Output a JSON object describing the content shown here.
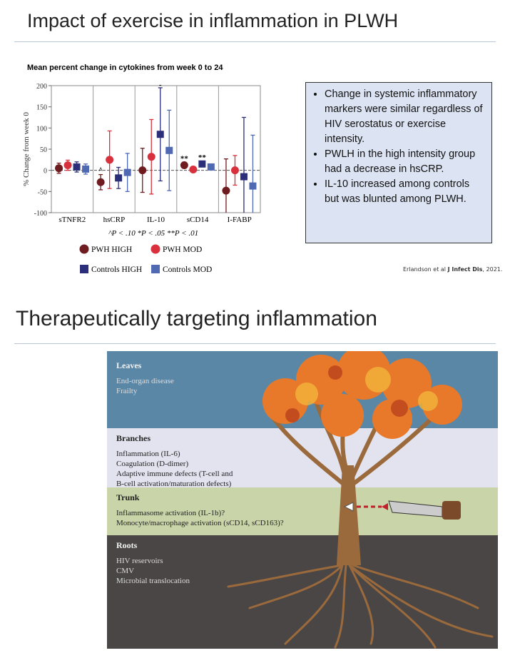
{
  "header": {
    "title": "Impact of exercise in inflammation in PLWH"
  },
  "chart_data": {
    "type": "dotplot",
    "title": "Mean percent change in cytokines from week 0 to 24",
    "y_label": "% Change from week 0",
    "categories": [
      "sTNFR2",
      "hsCRP",
      "IL-10",
      "sCD14",
      "I-FABP"
    ],
    "series": [
      {
        "name": "PWH HIGH",
        "color": "#6e1c1f",
        "marker": "circle",
        "values": [
          5,
          -28,
          0,
          12,
          -48
        ],
        "errors": [
          12,
          18,
          52,
          5,
          75
        ]
      },
      {
        "name": "PWH MOD",
        "color": "#d8303c",
        "marker": "circle",
        "values": [
          12,
          25,
          32,
          2,
          0
        ],
        "errors": [
          12,
          68,
          88,
          5,
          35
        ]
      },
      {
        "name": "Controls HIGH",
        "color": "#2b2e78",
        "marker": "square",
        "values": [
          8,
          -18,
          85,
          15,
          -15
        ],
        "errors": [
          12,
          25,
          110,
          5,
          140
        ]
      },
      {
        "name": "Controls MOD",
        "color": "#4f69b3",
        "marker": "square",
        "values": [
          3,
          -5,
          47,
          8,
          -37
        ],
        "errors": [
          12,
          45,
          95,
          4,
          120
        ]
      }
    ],
    "ylim": [
      -100,
      200
    ],
    "yticks": [
      -100,
      -50,
      0,
      50,
      100,
      150,
      200
    ],
    "annotations": [
      {
        "text": "^",
        "series": 0,
        "category": 1
      },
      {
        "text": "-",
        "series": 2,
        "category": 2
      },
      {
        "text": "**",
        "series": 0,
        "category": 3
      },
      {
        "text": "**",
        "series": 2,
        "category": 3
      }
    ],
    "footnote": "^P < .10   *P < .05   **P < .01"
  },
  "bullets": [
    "Change in systemic inflammatory markers were similar regardless of HIV serostatus or exercise intensity.",
    "PWLH in the high intensity group had a decrease in hsCRP.",
    "IL-10 increased among controls but was blunted among PLWH."
  ],
  "citation": {
    "authors": "Erlandson et al",
    "journal": "J Infect Dis",
    "year": ", 2021."
  },
  "section2": {
    "title": "Therapeutically targeting inflammation"
  },
  "diagram": {
    "bands": [
      {
        "title": "Leaves",
        "items": [
          "End-organ disease",
          "Frailty"
        ]
      },
      {
        "title": "Branches",
        "items": [
          "Inflammation (IL-6)",
          "Coagulation (D-dimer)",
          "Adaptive immune defects (T-cell and",
          "B-cell activation/maturation defects)"
        ]
      },
      {
        "title": "Trunk",
        "items": [
          "Inflammasome activation (IL-1b)?",
          "Monocyte/macrophage activation (sCD14, sCD163)?"
        ]
      },
      {
        "title": "Roots",
        "items": [
          "HIV reservoirs",
          "CMV",
          "Microbial translocation"
        ]
      }
    ]
  }
}
